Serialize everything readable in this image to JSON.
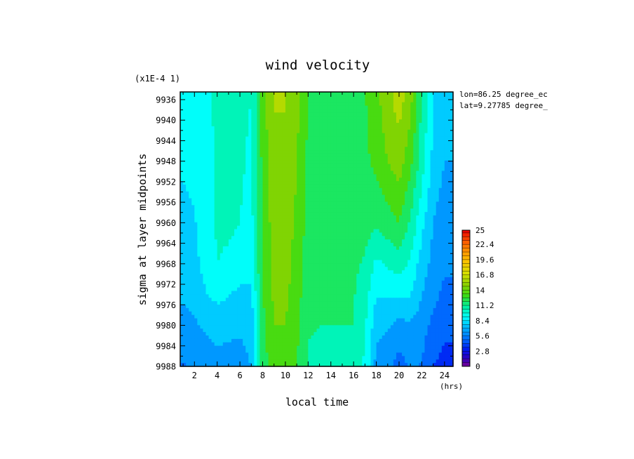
{
  "chart_data": {
    "type": "heatmap",
    "title": "wind velocity",
    "xlabel": "local time",
    "ylabel": "sigma at layer midpoints",
    "x_unit": "(hrs)",
    "y_scale_label": "(x1E-4 1)",
    "annotations": [
      "lon=86.25 degree_ec",
      "lat=9.27785 degree_"
    ],
    "xlim": [
      0.75,
      24.75
    ],
    "ylim": [
      9988,
      9934.5
    ],
    "x_ticks": [
      2,
      4,
      6,
      8,
      10,
      12,
      14,
      16,
      18,
      20,
      22,
      24
    ],
    "y_ticks": [
      9936,
      9940,
      9944,
      9948,
      9952,
      9956,
      9960,
      9964,
      9968,
      9972,
      9976,
      9980,
      9984,
      9988
    ],
    "x": [
      1,
      2,
      3,
      4,
      5,
      6,
      7,
      8,
      9,
      10,
      11,
      12,
      13,
      14,
      15,
      16,
      17,
      18,
      19,
      20,
      21,
      22,
      23,
      24
    ],
    "y": [
      9936,
      9948,
      9960,
      9968,
      9974,
      9980,
      9988
    ],
    "z": [
      [
        8.4,
        8.6,
        9.5,
        10.2,
        10.2,
        10.0,
        9.8,
        13.5,
        15.5,
        15.5,
        14.5,
        12.5,
        12.0,
        12.0,
        12.0,
        12.0,
        12.5,
        13.5,
        15.0,
        16.0,
        14.5,
        11.0,
        8.5,
        7.5
      ],
      [
        8.6,
        8.8,
        9.0,
        10.0,
        10.2,
        10.0,
        9.6,
        13.0,
        15.0,
        15.0,
        14.0,
        12.3,
        12.0,
        12.0,
        12.0,
        12.0,
        12.3,
        13.0,
        14.0,
        14.8,
        13.0,
        10.5,
        8.0,
        7.0
      ],
      [
        8.0,
        8.3,
        9.0,
        10.0,
        10.0,
        9.8,
        9.3,
        13.0,
        14.6,
        14.6,
        13.8,
        12.0,
        11.8,
        11.8,
        11.8,
        11.8,
        11.8,
        11.5,
        12.0,
        12.6,
        11.0,
        8.8,
        7.0,
        6.2
      ],
      [
        7.6,
        8.0,
        9.0,
        9.8,
        9.6,
        9.3,
        9.0,
        12.8,
        14.5,
        14.5,
        13.5,
        11.8,
        11.5,
        11.5,
        11.5,
        11.5,
        11.0,
        9.5,
        10.0,
        10.5,
        9.5,
        7.8,
        6.5,
        5.8
      ],
      [
        7.2,
        7.5,
        8.3,
        8.8,
        8.5,
        8.0,
        8.0,
        12.5,
        14.3,
        14.3,
        13.3,
        11.5,
        11.3,
        11.3,
        11.3,
        11.3,
        10.5,
        8.5,
        8.5,
        8.6,
        8.5,
        7.0,
        6.0,
        5.3
      ],
      [
        6.5,
        6.8,
        7.2,
        7.5,
        7.4,
        7.2,
        7.6,
        12.2,
        14.0,
        14.0,
        13.0,
        11.3,
        11.2,
        11.2,
        11.2,
        11.2,
        10.0,
        7.5,
        7.2,
        6.5,
        6.8,
        6.2,
        5.2,
        4.5
      ],
      [
        5.5,
        5.8,
        6.2,
        6.5,
        6.4,
        6.5,
        7.0,
        11.8,
        13.6,
        13.6,
        12.6,
        11.0,
        11.0,
        11.0,
        11.0,
        11.0,
        9.5,
        6.5,
        6.0,
        5.0,
        5.8,
        5.5,
        4.2,
        3.8
      ]
    ],
    "colorbar": {
      "min": 0,
      "max": 25,
      "step": 1.4,
      "labels": [
        "25",
        "22.4",
        "19.6",
        "16.8",
        "14",
        "11.2",
        "8.4",
        "5.6",
        "2.8",
        "0"
      ]
    }
  }
}
